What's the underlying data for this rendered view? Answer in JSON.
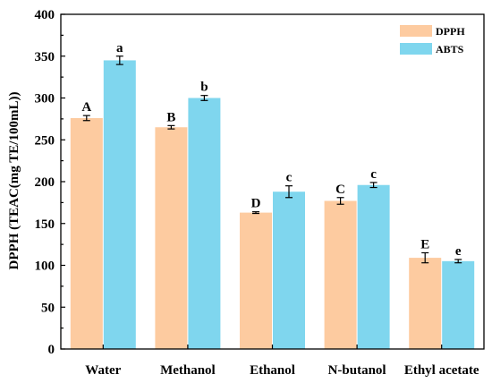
{
  "chart_data": {
    "type": "bar",
    "title": "",
    "xlabel": "",
    "ylabel": "DPPH (TEAC(mg TE/100mL))",
    "ylim": [
      0,
      400
    ],
    "yticks": [
      "0",
      "50",
      "100",
      "150",
      "200",
      "250",
      "300",
      "350",
      "400"
    ],
    "grid": false,
    "legend_position": "top-right",
    "categories": [
      "Water",
      "Methanol",
      "Ethanol",
      "N-butanol",
      "Ethyl acetate"
    ],
    "series": [
      {
        "name": "DPPH",
        "color": "#FDCBA0",
        "values": [
          276,
          265,
          163,
          177,
          109
        ],
        "errors": [
          3,
          2,
          1,
          4,
          6
        ],
        "labels": [
          "A",
          "B",
          "D",
          "C",
          "E"
        ]
      },
      {
        "name": "ABTS",
        "color": "#7FD6EE",
        "values": [
          345,
          300,
          188,
          196,
          105
        ],
        "errors": [
          5,
          3,
          7,
          3,
          2
        ],
        "labels": [
          "a",
          "b",
          "c",
          "c",
          "e"
        ]
      }
    ]
  }
}
